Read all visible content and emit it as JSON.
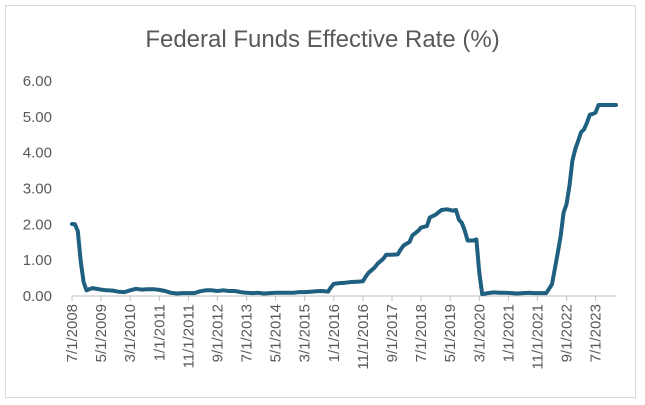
{
  "chart_data": {
    "type": "line",
    "title": "Federal Funds Effective Rate (%)",
    "xlabel": "",
    "ylabel": "",
    "ylim": [
      0,
      6
    ],
    "yticks": [
      "0.00",
      "1.00",
      "2.00",
      "3.00",
      "4.00",
      "5.00",
      "6.00"
    ],
    "xticks": [
      "7/1/2008",
      "5/1/2009",
      "3/1/2010",
      "1/1/2011",
      "11/1/2011",
      "9/1/2012",
      "7/1/2013",
      "5/1/2014",
      "3/1/2015",
      "1/1/2016",
      "11/1/2016",
      "9/1/2017",
      "7/1/2018",
      "5/1/2019",
      "3/1/2020",
      "1/1/2021",
      "11/1/2021",
      "9/1/2022",
      "7/1/2023"
    ],
    "grid": false,
    "legend": "none",
    "line_color": "#1f5f7f",
    "series": [
      {
        "x": [
          "2008-07",
          "2008-08",
          "2008-09",
          "2008-10",
          "2008-11",
          "2008-12",
          "2009-02",
          "2009-05",
          "2009-07",
          "2009-09",
          "2009-11",
          "2010-01",
          "2010-03",
          "2010-05",
          "2010-07",
          "2010-09",
          "2010-11",
          "2011-01",
          "2011-03",
          "2011-05",
          "2011-07",
          "2011-09",
          "2011-11",
          "2012-01",
          "2012-03",
          "2012-05",
          "2012-07",
          "2012-09",
          "2012-11",
          "2013-01",
          "2013-03",
          "2013-05",
          "2013-07",
          "2013-09",
          "2013-11",
          "2014-01",
          "2014-03",
          "2014-05",
          "2014-07",
          "2014-09",
          "2014-11",
          "2015-01",
          "2015-03",
          "2015-05",
          "2015-07",
          "2015-09",
          "2015-11",
          "2015-12",
          "2016-01",
          "2016-03",
          "2016-05",
          "2016-07",
          "2016-09",
          "2016-11",
          "2016-12",
          "2017-01",
          "2017-03",
          "2017-04",
          "2017-06",
          "2017-07",
          "2017-09",
          "2017-11",
          "2017-12",
          "2018-01",
          "2018-03",
          "2018-04",
          "2018-06",
          "2018-07",
          "2018-09",
          "2018-10",
          "2018-12",
          "2019-02",
          "2019-04",
          "2019-06",
          "2019-07",
          "2019-08",
          "2019-09",
          "2019-10",
          "2019-11",
          "2020-01",
          "2020-02",
          "2020-03",
          "2020-04",
          "2020-06",
          "2020-08",
          "2020-10",
          "2020-12",
          "2021-02",
          "2021-04",
          "2021-06",
          "2021-08",
          "2021-10",
          "2021-12",
          "2022-01",
          "2022-02",
          "2022-03",
          "2022-04",
          "2022-05",
          "2022-06",
          "2022-07",
          "2022-08",
          "2022-09",
          "2022-10",
          "2022-11",
          "2022-12",
          "2023-01",
          "2023-02",
          "2023-03",
          "2023-04",
          "2023-05",
          "2023-06",
          "2023-07",
          "2023-08",
          "2023-09",
          "2023-10",
          "2023-11",
          "2023-12",
          "2024-01",
          "2024-02"
        ],
        "values": [
          2.01,
          2.0,
          1.81,
          0.97,
          0.39,
          0.16,
          0.22,
          0.18,
          0.16,
          0.15,
          0.12,
          0.11,
          0.16,
          0.2,
          0.18,
          0.19,
          0.19,
          0.17,
          0.14,
          0.09,
          0.07,
          0.08,
          0.08,
          0.08,
          0.13,
          0.16,
          0.16,
          0.14,
          0.16,
          0.14,
          0.14,
          0.11,
          0.09,
          0.08,
          0.09,
          0.07,
          0.08,
          0.09,
          0.09,
          0.09,
          0.09,
          0.11,
          0.11,
          0.12,
          0.13,
          0.14,
          0.12,
          0.24,
          0.34,
          0.36,
          0.37,
          0.39,
          0.4,
          0.41,
          0.54,
          0.65,
          0.79,
          0.9,
          1.04,
          1.15,
          1.15,
          1.16,
          1.3,
          1.41,
          1.51,
          1.69,
          1.82,
          1.91,
          1.95,
          2.19,
          2.27,
          2.4,
          2.42,
          2.38,
          2.4,
          2.13,
          2.04,
          1.83,
          1.55,
          1.55,
          1.58,
          0.65,
          0.05,
          0.08,
          0.1,
          0.09,
          0.09,
          0.08,
          0.07,
          0.08,
          0.09,
          0.08,
          0.08,
          0.08,
          0.08,
          0.2,
          0.33,
          0.77,
          1.21,
          1.68,
          2.33,
          2.56,
          3.08,
          3.78,
          4.1,
          4.33,
          4.57,
          4.65,
          4.83,
          5.06,
          5.08,
          5.12,
          5.33,
          5.33,
          5.33,
          5.33,
          5.33,
          5.33,
          5.33
        ]
      }
    ]
  }
}
